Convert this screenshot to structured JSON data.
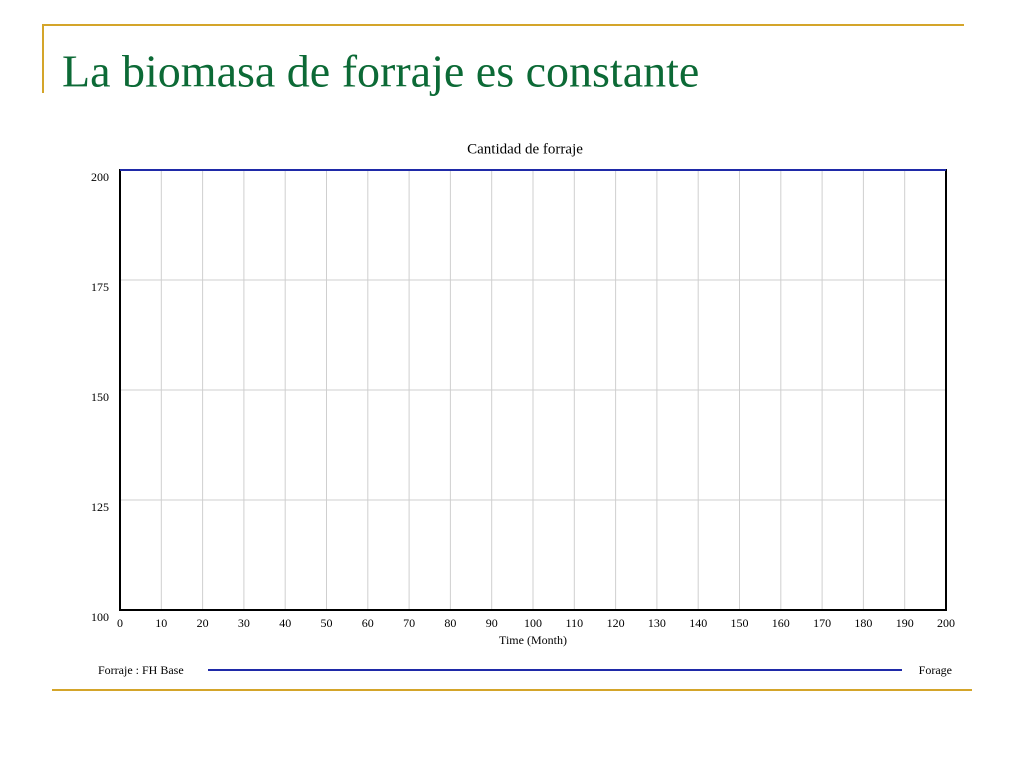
{
  "slide_title": "La biomasa de forraje es constante",
  "chart_data": {
    "type": "line",
    "title": "Cantidad de forraje",
    "x_label": "Time (Month)",
    "x": [
      0,
      10,
      20,
      30,
      40,
      50,
      60,
      70,
      80,
      90,
      100,
      110,
      120,
      130,
      140,
      150,
      160,
      170,
      180,
      190,
      200
    ],
    "series": [
      {
        "name": "Forraje : FH Base",
        "variable": "Forage",
        "color": "#1f2aa8",
        "values": [
          200,
          200,
          200,
          200,
          200,
          200,
          200,
          200,
          200,
          200,
          200,
          200,
          200,
          200,
          200,
          200,
          200,
          200,
          200,
          200,
          200
        ]
      }
    ],
    "xlim": [
      0,
      200
    ],
    "xticks": [
      0,
      10,
      20,
      30,
      40,
      50,
      60,
      70,
      80,
      90,
      100,
      110,
      120,
      130,
      140,
      150,
      160,
      170,
      180,
      190,
      200
    ],
    "ylim": [
      100,
      200
    ],
    "yticks": [
      100,
      125,
      150,
      175,
      200
    ],
    "grid": true
  }
}
